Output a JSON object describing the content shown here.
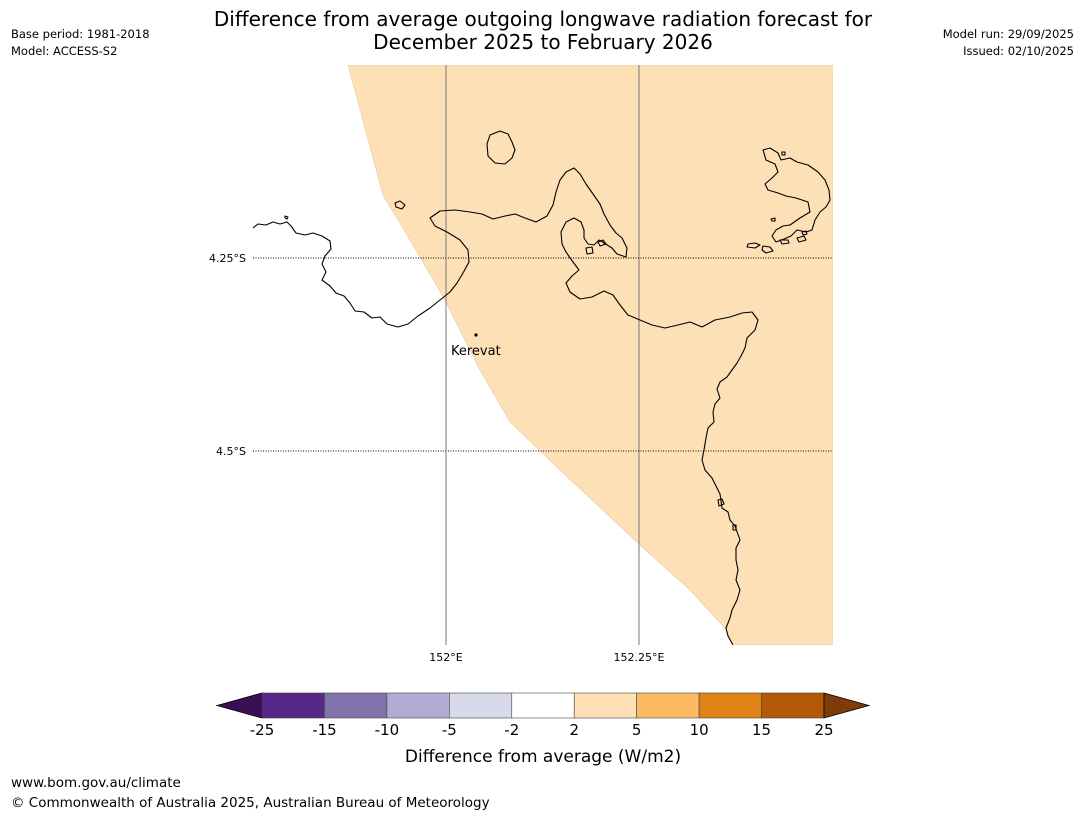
{
  "title": {
    "line1": "Difference from average outgoing longwave radiation forecast for",
    "line2": "December 2025 to February 2026"
  },
  "meta_left": {
    "base_period": "Base period: 1981-2018",
    "model": "Model: ACCESS-S2"
  },
  "meta_right": {
    "model_run": "Model run: 29/09/2025",
    "issued": "Issued: 02/10/2025"
  },
  "map": {
    "lat_labels": [
      "4.25°S",
      "4.5°S"
    ],
    "lon_labels": [
      "152°E",
      "152.25°E"
    ],
    "place": "Kerevat",
    "land_fill_color": "#fde0b6",
    "coast_color": "#000000"
  },
  "legend": {
    "label": "Difference from average (W/m2)",
    "ticks": [
      "-25",
      "-15",
      "-10",
      "-5",
      "-2",
      "2",
      "5",
      "10",
      "15",
      "25"
    ],
    "under_color": "#3b0f55",
    "over_color": "#7f3b08",
    "colors": [
      "#542788",
      "#8073ac",
      "#b2abd2",
      "#d8daeb",
      "#ffffff",
      "#fee0b6",
      "#fdb863",
      "#e08214",
      "#b35806"
    ]
  },
  "footer": {
    "url": "www.bom.gov.au/climate",
    "copyright": "© Commonwealth of Australia 2025, Australian Bureau of Meteorology"
  }
}
